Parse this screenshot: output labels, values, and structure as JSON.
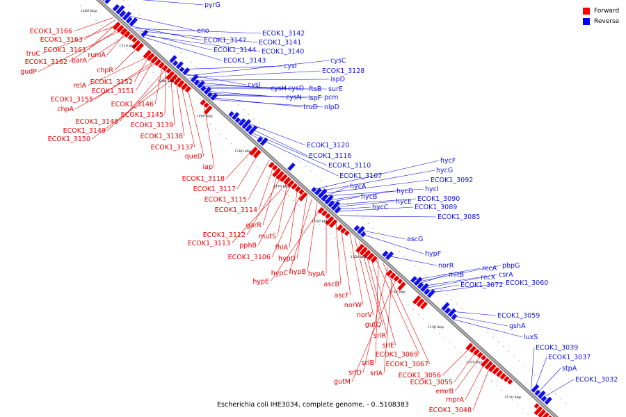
{
  "legend": {
    "items": [
      {
        "label": "Forward",
        "color": "#ff0000"
      },
      {
        "label": "Reverse",
        "color": "#0000ff"
      }
    ]
  },
  "caption": "Escherichia coli IHE3034, complete genome. - 0..5108383",
  "colors": {
    "forward": "#e80000",
    "reverse": "#1010e8",
    "backbone": "#777777"
  },
  "ticks": [
    "1220 kbp",
    "1210 kbp",
    "1200 kbp",
    "1190 kbp",
    "1180 kbp",
    "1170 kbp",
    "1160 kbp",
    "1150 kbp",
    "1140 kbp",
    "1130 kbp",
    "1120 kbp",
    "1110 kbp"
  ],
  "forward_labels": [
    "ECOK1_3166",
    "ECOK1_3163",
    "ECOK1_3161",
    "truC",
    "ECOK1_3162",
    "gudP",
    "rumA",
    "barA",
    "chpR",
    "ECOK1_3152",
    "relA",
    "ECOK1_3151",
    "ECOK1_3155",
    "chpA",
    "ECOK1_3146",
    "ECOK1_3145",
    "ECOK1_3148",
    "ECOK1_3139",
    "ECOK1_3149",
    "ECOK1_3138",
    "ECOK1_3150",
    "ECOK1_3137",
    "queD",
    "iap",
    "ECOK1_3118",
    "ECOK1_3117",
    "ECOK1_3115",
    "ECOK1_3114",
    "garR",
    "ECOK1_3112",
    "mutS",
    "ECOK1_3113",
    "pphB",
    "fhlA",
    "ECOK1_3106",
    "hypD",
    "hypC",
    "hypB",
    "hypE",
    "hypA",
    "ascB",
    "ascF",
    "norW",
    "norV",
    "gutQ",
    "srlR",
    "srlE",
    "ECOK1_3069",
    "srlB",
    "ECOK1_3067",
    "srlD",
    "srlA",
    "gutM",
    "ECOK1_3056",
    "ECOK1_3055",
    "emrB",
    "mprA",
    "ECOK1_3048"
  ],
  "reverse_labels": [
    "pyrG",
    "eno",
    "ECOK1_3147",
    "ECOK1_3142",
    "ECOK1_3141",
    "ECOK1_3144",
    "ECOK1_3140",
    "ECOK1_3143",
    "cysI",
    "cysJ",
    "cysC",
    "ECOK1_3128",
    "ispD",
    "cysH",
    "cysD",
    "ftsB",
    "surE",
    "cysN",
    "ispF",
    "pcm",
    "truD",
    "nlpD",
    "ECOK1_3120",
    "ECOK1_3116",
    "ECOK1_3110",
    "ECOK1_3107",
    "hycF",
    "hycG",
    "ECOK1_3092",
    "hycI",
    "hycA",
    "hycD",
    "hycB",
    "ECOK1_3090",
    "hycE",
    "hycC",
    "ECOK1_3089",
    "ECOK1_3085",
    "ascG",
    "hypF",
    "norR",
    "recA",
    "pbpG",
    "mltB",
    "recX",
    "csrA",
    "ECOK1_3072",
    "ECOK1_3060",
    "ECOK1_3059",
    "gshA",
    "luxS",
    "ECOK1_3039",
    "ECOK1_3037",
    "stpA",
    "ECOK1_3032"
  ]
}
